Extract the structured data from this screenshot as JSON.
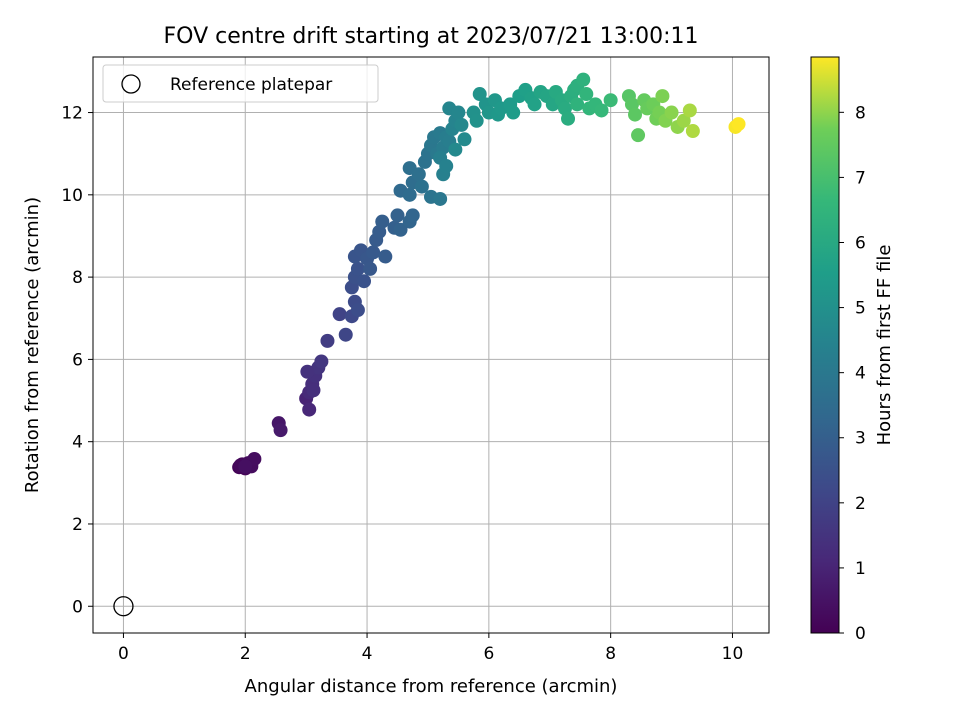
{
  "chart_data": {
    "type": "scatter",
    "title": "FOV centre drift starting at 2023/07/21 13:00:11",
    "xlabel": "Angular distance from reference (arcmin)",
    "ylabel": "Rotation from reference (arcmin)",
    "xlim": [
      -0.5,
      10.6
    ],
    "ylim": [
      -0.65,
      13.35
    ],
    "xticks": [
      0,
      2,
      4,
      6,
      8,
      10
    ],
    "yticks": [
      0,
      2,
      4,
      6,
      8,
      10,
      12
    ],
    "grid": true,
    "legend": {
      "placement": "top-left",
      "entries": [
        "Reference platepar"
      ]
    },
    "reference_point": {
      "x": 0,
      "y": 0
    },
    "colorbar": {
      "label": "Hours from first FF file",
      "colormap": "viridis",
      "range": [
        0,
        8.85
      ],
      "ticks": [
        0,
        1,
        2,
        3,
        4,
        5,
        6,
        7,
        8
      ]
    },
    "series": [
      {
        "x_y_hours": [
          [
            1.9,
            3.38,
            0.05
          ],
          [
            1.95,
            3.45,
            0.1
          ],
          [
            2.0,
            3.35,
            0.15
          ],
          [
            1.92,
            3.42,
            0.2
          ],
          [
            2.05,
            3.48,
            0.25
          ],
          [
            2.1,
            3.4,
            0.3
          ],
          [
            2.15,
            3.58,
            0.35
          ],
          [
            2.0,
            3.4,
            0.4
          ],
          [
            2.55,
            4.45,
            0.6
          ],
          [
            2.58,
            4.28,
            0.7
          ],
          [
            3.0,
            5.05,
            1.0
          ],
          [
            3.05,
            4.78,
            1.1
          ],
          [
            3.05,
            5.2,
            1.2
          ],
          [
            3.1,
            5.4,
            1.3
          ],
          [
            3.15,
            5.6,
            1.4
          ],
          [
            3.2,
            5.8,
            1.5
          ],
          [
            3.25,
            5.95,
            1.6
          ],
          [
            3.02,
            5.7,
            1.45
          ],
          [
            3.12,
            5.25,
            1.35
          ],
          [
            3.35,
            6.45,
            1.8
          ],
          [
            3.55,
            7.1,
            2.0
          ],
          [
            3.65,
            6.6,
            2.1
          ],
          [
            3.75,
            7.05,
            2.2
          ],
          [
            3.8,
            7.4,
            2.3
          ],
          [
            3.85,
            7.2,
            2.35
          ],
          [
            3.75,
            7.75,
            2.4
          ],
          [
            3.8,
            8.0,
            2.5
          ],
          [
            3.85,
            8.2,
            2.55
          ],
          [
            3.8,
            8.5,
            2.6
          ],
          [
            3.9,
            8.65,
            2.65
          ],
          [
            3.95,
            7.9,
            2.55
          ],
          [
            4.0,
            8.45,
            2.7
          ],
          [
            4.05,
            8.2,
            2.75
          ],
          [
            4.1,
            8.6,
            2.8
          ],
          [
            4.15,
            8.9,
            2.85
          ],
          [
            4.2,
            9.1,
            2.9
          ],
          [
            4.25,
            9.35,
            2.95
          ],
          [
            4.3,
            8.5,
            2.88
          ],
          [
            4.45,
            9.2,
            3.05
          ],
          [
            4.5,
            9.5,
            3.1
          ],
          [
            4.55,
            9.15,
            3.15
          ],
          [
            4.7,
            9.35,
            3.2
          ],
          [
            4.75,
            9.5,
            3.25
          ],
          [
            4.55,
            10.1,
            3.4
          ],
          [
            4.7,
            10.0,
            3.5
          ],
          [
            4.75,
            10.3,
            3.55
          ],
          [
            4.7,
            10.65,
            3.6
          ],
          [
            4.85,
            10.5,
            3.65
          ],
          [
            4.95,
            10.8,
            3.75
          ],
          [
            5.0,
            11.0,
            3.8
          ],
          [
            4.9,
            10.2,
            3.7
          ],
          [
            5.05,
            9.95,
            3.85
          ],
          [
            5.2,
            9.9,
            3.95
          ],
          [
            5.05,
            11.2,
            3.95
          ],
          [
            5.1,
            11.4,
            4.0
          ],
          [
            5.15,
            11.0,
            4.05
          ],
          [
            5.2,
            11.5,
            4.1
          ],
          [
            5.25,
            11.15,
            4.15
          ],
          [
            5.3,
            11.4,
            4.2
          ],
          [
            5.35,
            11.3,
            4.25
          ],
          [
            5.2,
            10.9,
            4.3
          ],
          [
            5.25,
            10.5,
            4.35
          ],
          [
            5.3,
            10.7,
            4.4
          ],
          [
            5.4,
            11.6,
            4.45
          ],
          [
            5.45,
            11.8,
            4.5
          ],
          [
            5.35,
            12.1,
            4.55
          ],
          [
            5.5,
            12.0,
            4.6
          ],
          [
            5.55,
            11.7,
            4.65
          ],
          [
            5.45,
            11.1,
            4.7
          ],
          [
            5.6,
            11.35,
            4.75
          ],
          [
            5.75,
            12.0,
            5.0
          ],
          [
            5.8,
            11.8,
            5.05
          ],
          [
            5.85,
            12.45,
            5.1
          ],
          [
            5.95,
            12.2,
            5.15
          ],
          [
            6.0,
            12.0,
            5.2
          ],
          [
            6.1,
            12.3,
            5.25
          ],
          [
            6.15,
            11.95,
            5.3
          ],
          [
            6.2,
            12.1,
            5.35
          ],
          [
            6.35,
            12.2,
            5.4
          ],
          [
            6.4,
            12.0,
            5.45
          ],
          [
            6.5,
            12.4,
            5.55
          ],
          [
            6.6,
            12.55,
            5.6
          ],
          [
            6.7,
            12.35,
            5.65
          ],
          [
            6.75,
            12.2,
            5.7
          ],
          [
            6.85,
            12.5,
            5.8
          ],
          [
            6.95,
            12.4,
            5.85
          ],
          [
            7.05,
            12.2,
            5.9
          ],
          [
            7.1,
            12.5,
            6.0
          ],
          [
            7.2,
            12.3,
            6.05
          ],
          [
            7.25,
            12.1,
            6.1
          ],
          [
            7.3,
            11.85,
            6.15
          ],
          [
            7.35,
            12.4,
            6.2
          ],
          [
            7.4,
            12.55,
            6.25
          ],
          [
            7.45,
            12.65,
            6.3
          ],
          [
            7.55,
            12.8,
            6.35
          ],
          [
            7.45,
            12.2,
            6.4
          ],
          [
            7.6,
            12.45,
            6.5
          ],
          [
            7.65,
            12.1,
            6.55
          ],
          [
            7.75,
            12.2,
            6.6
          ],
          [
            7.85,
            12.05,
            6.65
          ],
          [
            8.0,
            12.3,
            6.75
          ],
          [
            8.3,
            12.4,
            7.3
          ],
          [
            8.35,
            12.2,
            7.35
          ],
          [
            8.4,
            11.95,
            7.4
          ],
          [
            8.45,
            11.45,
            7.45
          ],
          [
            8.55,
            12.3,
            7.55
          ],
          [
            8.6,
            12.1,
            7.6
          ],
          [
            8.7,
            12.2,
            7.7
          ],
          [
            8.75,
            11.85,
            7.75
          ],
          [
            8.8,
            12.0,
            7.8
          ],
          [
            8.85,
            12.4,
            7.85
          ],
          [
            8.9,
            11.8,
            7.9
          ],
          [
            9.0,
            12.0,
            7.95
          ],
          [
            9.1,
            11.65,
            8.0
          ],
          [
            9.2,
            11.8,
            8.1
          ],
          [
            9.3,
            12.05,
            8.2
          ],
          [
            9.35,
            11.55,
            8.25
          ],
          [
            10.05,
            11.65,
            8.8
          ],
          [
            10.1,
            11.72,
            8.85
          ]
        ]
      }
    ]
  }
}
